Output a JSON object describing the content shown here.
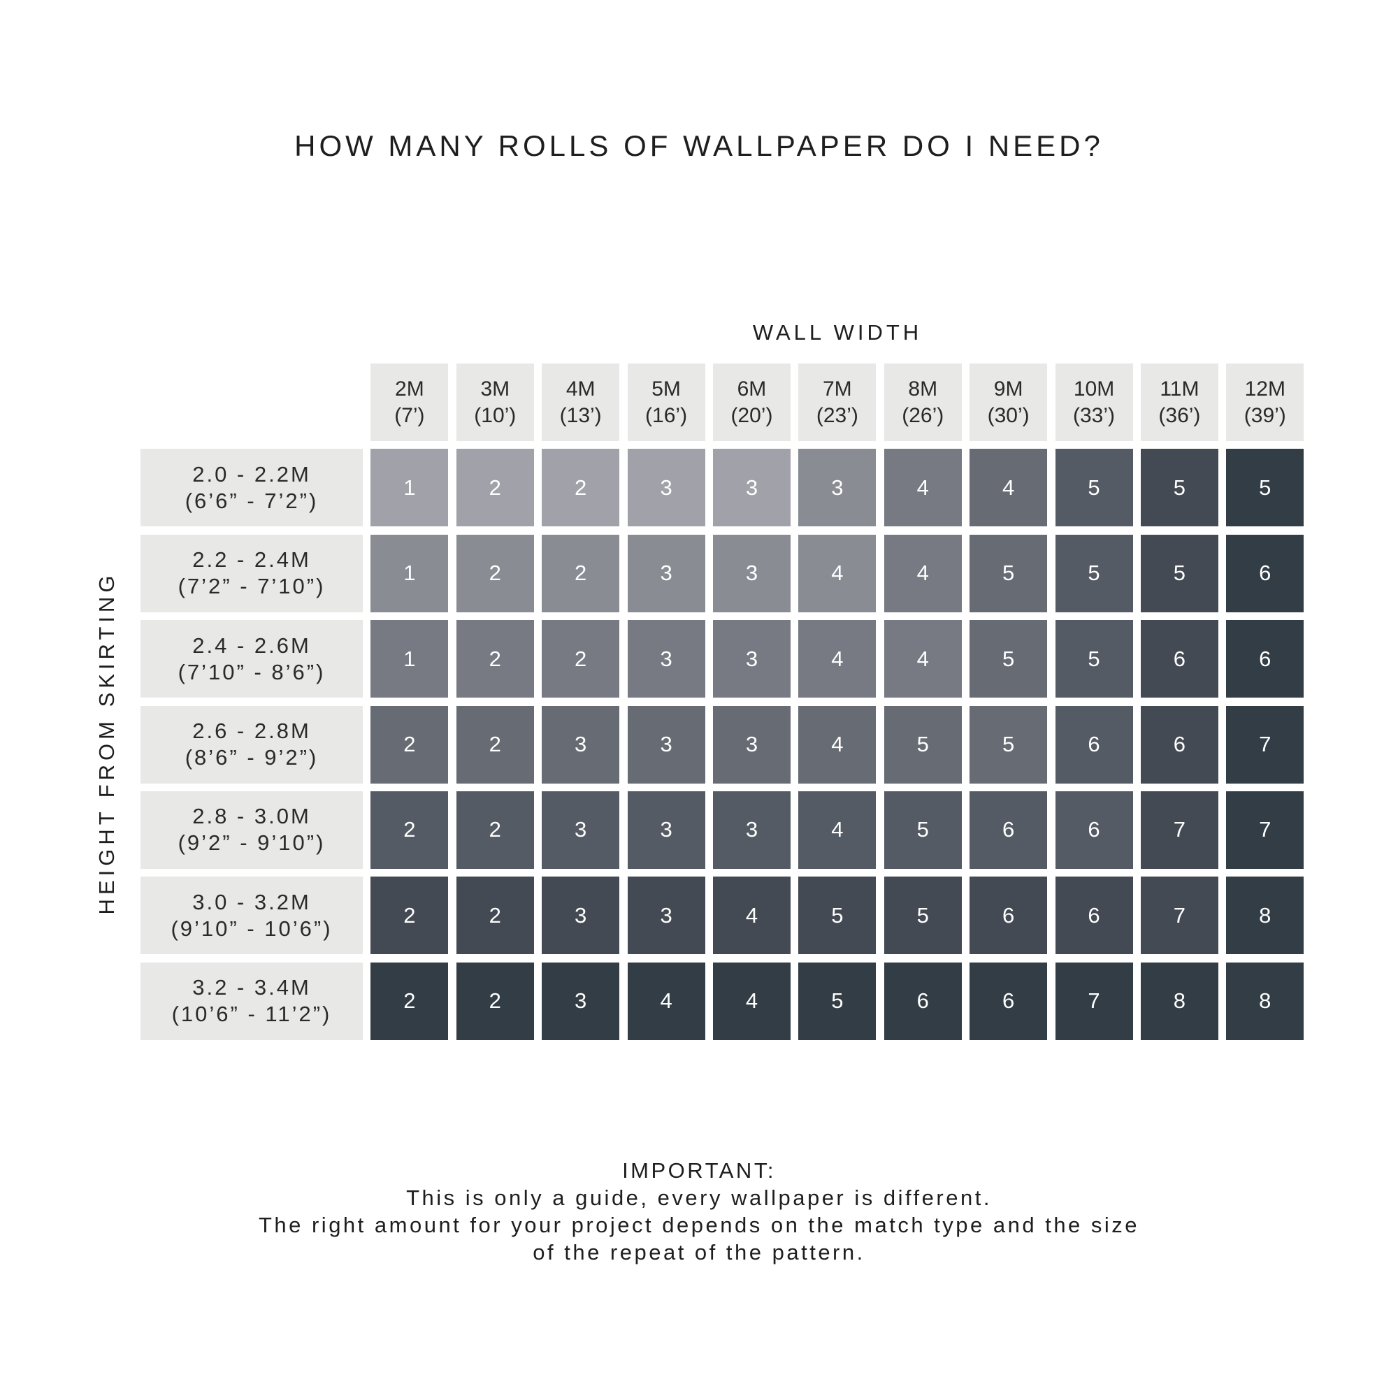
{
  "title": "HOW MANY ROLLS OF WALLPAPER DO I NEED?",
  "x_axis_label": "WALL WIDTH",
  "y_axis_label": "HEIGHT FROM SKIRTING",
  "columns": [
    {
      "metric": "2M",
      "imperial": "(7’)"
    },
    {
      "metric": "3M",
      "imperial": "(10’)"
    },
    {
      "metric": "4M",
      "imperial": "(13’)"
    },
    {
      "metric": "5M",
      "imperial": "(16’)"
    },
    {
      "metric": "6M",
      "imperial": "(20’)"
    },
    {
      "metric": "7M",
      "imperial": "(23’)"
    },
    {
      "metric": "8M",
      "imperial": "(26’)"
    },
    {
      "metric": "9M",
      "imperial": "(30’)"
    },
    {
      "metric": "10M",
      "imperial": "(33’)"
    },
    {
      "metric": "11M",
      "imperial": "(36’)"
    },
    {
      "metric": "12M",
      "imperial": "(39’)"
    }
  ],
  "rows": [
    {
      "metric": "2.0 - 2.2M",
      "imperial": "(6’6” - 7’2”)",
      "values": [
        1,
        2,
        2,
        3,
        3,
        3,
        4,
        4,
        5,
        5,
        5
      ],
      "shades": [
        0,
        0,
        0,
        0,
        0,
        1,
        2,
        3,
        4,
        5,
        6
      ]
    },
    {
      "metric": "2.2 - 2.4M",
      "imperial": "(7’2” - 7’10”)",
      "values": [
        1,
        2,
        2,
        3,
        3,
        4,
        4,
        5,
        5,
        5,
        6
      ],
      "shades": [
        1,
        1,
        1,
        1,
        1,
        1,
        2,
        3,
        4,
        5,
        6
      ]
    },
    {
      "metric": "2.4 - 2.6M",
      "imperial": "(7’10” - 8’6”)",
      "values": [
        1,
        2,
        2,
        3,
        3,
        4,
        4,
        5,
        5,
        6,
        6
      ],
      "shades": [
        2,
        2,
        2,
        2,
        2,
        2,
        2,
        3,
        4,
        5,
        6
      ]
    },
    {
      "metric": "2.6 - 2.8M",
      "imperial": "(8’6” - 9’2”)",
      "values": [
        2,
        2,
        3,
        3,
        3,
        4,
        5,
        5,
        6,
        6,
        7
      ],
      "shades": [
        3,
        3,
        3,
        3,
        3,
        3,
        3,
        3,
        4,
        5,
        6
      ]
    },
    {
      "metric": "2.8 - 3.0M",
      "imperial": "(9’2” - 9’10”)",
      "values": [
        2,
        2,
        3,
        3,
        3,
        4,
        5,
        6,
        6,
        7,
        7
      ],
      "shades": [
        4,
        4,
        4,
        4,
        4,
        4,
        4,
        4,
        4,
        5,
        6
      ]
    },
    {
      "metric": "3.0 - 3.2M",
      "imperial": "(9’10” - 10’6”)",
      "values": [
        2,
        2,
        3,
        3,
        4,
        5,
        5,
        6,
        6,
        7,
        8
      ],
      "shades": [
        5,
        5,
        5,
        5,
        5,
        5,
        5,
        5,
        5,
        5,
        6
      ]
    },
    {
      "metric": "3.2 - 3.4M",
      "imperial": "(10’6” - 11’2”)",
      "values": [
        2,
        2,
        3,
        4,
        4,
        5,
        6,
        6,
        7,
        8,
        8
      ],
      "shades": [
        6,
        6,
        6,
        6,
        6,
        6,
        6,
        6,
        6,
        6,
        6
      ]
    }
  ],
  "shade_palette": [
    "#a1a2a9",
    "#898c93",
    "#777a82",
    "#676b73",
    "#555b64",
    "#444a53",
    "#323d45"
  ],
  "note": {
    "heading": "IMPORTANT:",
    "lines": [
      "This is only a guide, every wallpaper is different.",
      "The right amount for your project depends on the match type and the size",
      "of the repeat of the pattern."
    ]
  }
}
